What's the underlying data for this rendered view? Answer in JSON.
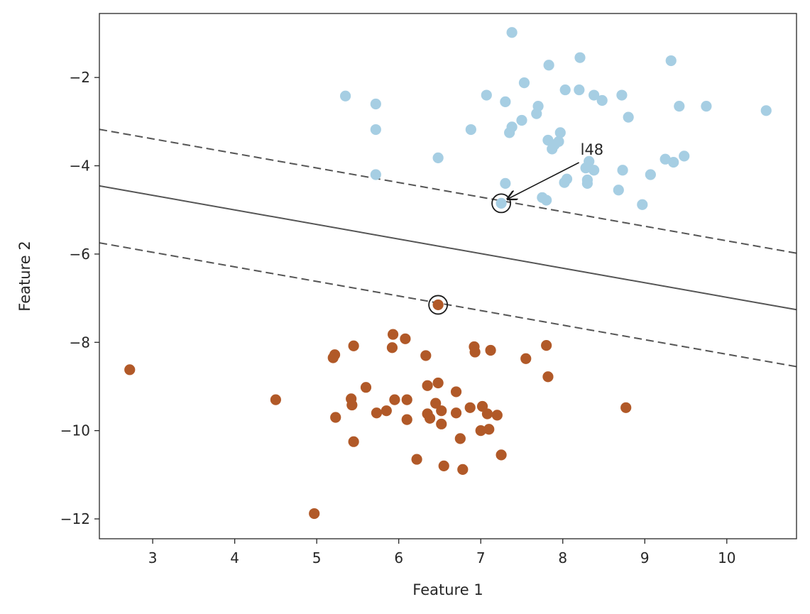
{
  "chart_data": {
    "type": "scatter",
    "xlabel": "Feature 1",
    "ylabel": "Feature 2",
    "xlim": [
      2.35,
      10.85
    ],
    "ylim": [
      -12.45,
      -0.55
    ],
    "xticks": [
      3,
      4,
      5,
      6,
      7,
      8,
      9,
      10
    ],
    "yticks": [
      -2,
      -4,
      -6,
      -8,
      -10,
      -12
    ],
    "xtick_labels": [
      "3",
      "4",
      "5",
      "6",
      "7",
      "8",
      "9",
      "10"
    ],
    "ytick_labels": [
      "−2",
      "−4",
      "−6",
      "−8",
      "−10",
      "−12"
    ],
    "grid": false,
    "classes": [
      {
        "color": "#a6cee3",
        "points": [
          [
            7.38,
            -0.98
          ],
          [
            8.21,
            -1.55
          ],
          [
            9.32,
            -1.62
          ],
          [
            7.83,
            -1.72
          ],
          [
            7.53,
            -2.12
          ],
          [
            5.35,
            -2.42
          ],
          [
            7.07,
            -2.4
          ],
          [
            8.03,
            -2.28
          ],
          [
            8.2,
            -2.28
          ],
          [
            8.38,
            -2.4
          ],
          [
            8.72,
            -2.4
          ],
          [
            5.72,
            -2.6
          ],
          [
            7.3,
            -2.55
          ],
          [
            7.7,
            -2.65
          ],
          [
            8.48,
            -2.52
          ],
          [
            9.42,
            -2.65
          ],
          [
            9.75,
            -2.65
          ],
          [
            10.48,
            -2.75
          ],
          [
            7.68,
            -2.82
          ],
          [
            8.8,
            -2.9
          ],
          [
            7.5,
            -2.97
          ],
          [
            5.72,
            -3.18
          ],
          [
            6.88,
            -3.18
          ],
          [
            7.38,
            -3.12
          ],
          [
            7.35,
            -3.25
          ],
          [
            7.97,
            -3.25
          ],
          [
            7.82,
            -3.42
          ],
          [
            7.95,
            -3.45
          ],
          [
            7.9,
            -3.52
          ],
          [
            7.87,
            -3.62
          ],
          [
            6.48,
            -3.82
          ],
          [
            9.25,
            -3.85
          ],
          [
            9.35,
            -3.92
          ],
          [
            9.48,
            -3.78
          ],
          [
            8.32,
            -3.9
          ],
          [
            8.28,
            -4.05
          ],
          [
            8.38,
            -4.1
          ],
          [
            8.73,
            -4.1
          ],
          [
            5.72,
            -4.2
          ],
          [
            9.07,
            -4.2
          ],
          [
            8.05,
            -4.3
          ],
          [
            8.02,
            -4.38
          ],
          [
            8.3,
            -4.32
          ],
          [
            8.3,
            -4.4
          ],
          [
            7.3,
            -4.4
          ],
          [
            8.68,
            -4.55
          ],
          [
            7.75,
            -4.72
          ],
          [
            7.8,
            -4.78
          ],
          [
            8.97,
            -4.88
          ],
          [
            7.25,
            -4.85
          ]
        ]
      },
      {
        "color": "#b15928",
        "points": [
          [
            6.48,
            -7.15
          ],
          [
            5.93,
            -7.82
          ],
          [
            6.08,
            -7.92
          ],
          [
            7.8,
            -8.07
          ],
          [
            5.45,
            -8.08
          ],
          [
            6.92,
            -8.1
          ],
          [
            5.92,
            -8.12
          ],
          [
            7.12,
            -8.18
          ],
          [
            6.93,
            -8.22
          ],
          [
            5.22,
            -8.28
          ],
          [
            6.33,
            -8.3
          ],
          [
            5.2,
            -8.35
          ],
          [
            7.55,
            -8.37
          ],
          [
            2.72,
            -8.62
          ],
          [
            7.82,
            -8.78
          ],
          [
            6.48,
            -8.92
          ],
          [
            6.35,
            -8.98
          ],
          [
            5.6,
            -9.02
          ],
          [
            6.7,
            -9.12
          ],
          [
            4.5,
            -9.3
          ],
          [
            5.42,
            -9.28
          ],
          [
            5.95,
            -9.3
          ],
          [
            6.1,
            -9.3
          ],
          [
            6.45,
            -9.38
          ],
          [
            5.43,
            -9.42
          ],
          [
            7.02,
            -9.45
          ],
          [
            8.77,
            -9.48
          ],
          [
            6.87,
            -9.48
          ],
          [
            6.52,
            -9.55
          ],
          [
            5.85,
            -9.55
          ],
          [
            5.73,
            -9.6
          ],
          [
            6.7,
            -9.6
          ],
          [
            6.35,
            -9.62
          ],
          [
            7.08,
            -9.62
          ],
          [
            7.2,
            -9.65
          ],
          [
            5.23,
            -9.7
          ],
          [
            6.38,
            -9.72
          ],
          [
            6.1,
            -9.75
          ],
          [
            6.52,
            -9.85
          ],
          [
            7.1,
            -9.97
          ],
          [
            7.0,
            -10.0
          ],
          [
            6.75,
            -10.18
          ],
          [
            5.45,
            -10.25
          ],
          [
            7.25,
            -10.55
          ],
          [
            6.22,
            -10.65
          ],
          [
            6.55,
            -10.8
          ],
          [
            6.78,
            -10.88
          ],
          [
            4.97,
            -11.88
          ]
        ]
      }
    ],
    "support_vectors": [
      [
        7.25,
        -4.85
      ],
      [
        6.48,
        -7.15
      ]
    ],
    "decision_boundary": {
      "slope": -0.33,
      "intercept": -3.68,
      "style": "solid"
    },
    "margin_upper": {
      "slope": -0.33,
      "intercept": -2.4,
      "style": "dashed"
    },
    "margin_lower": {
      "slope": -0.33,
      "intercept": -4.97,
      "style": "dashed"
    },
    "annotation": {
      "text": "l48",
      "point": [
        7.25,
        -4.85
      ],
      "text_pos": [
        8.25,
        -3.75
      ]
    },
    "colors": {
      "line": "#555555",
      "axis": "#262626",
      "arrow": "#1a1a1a"
    }
  }
}
